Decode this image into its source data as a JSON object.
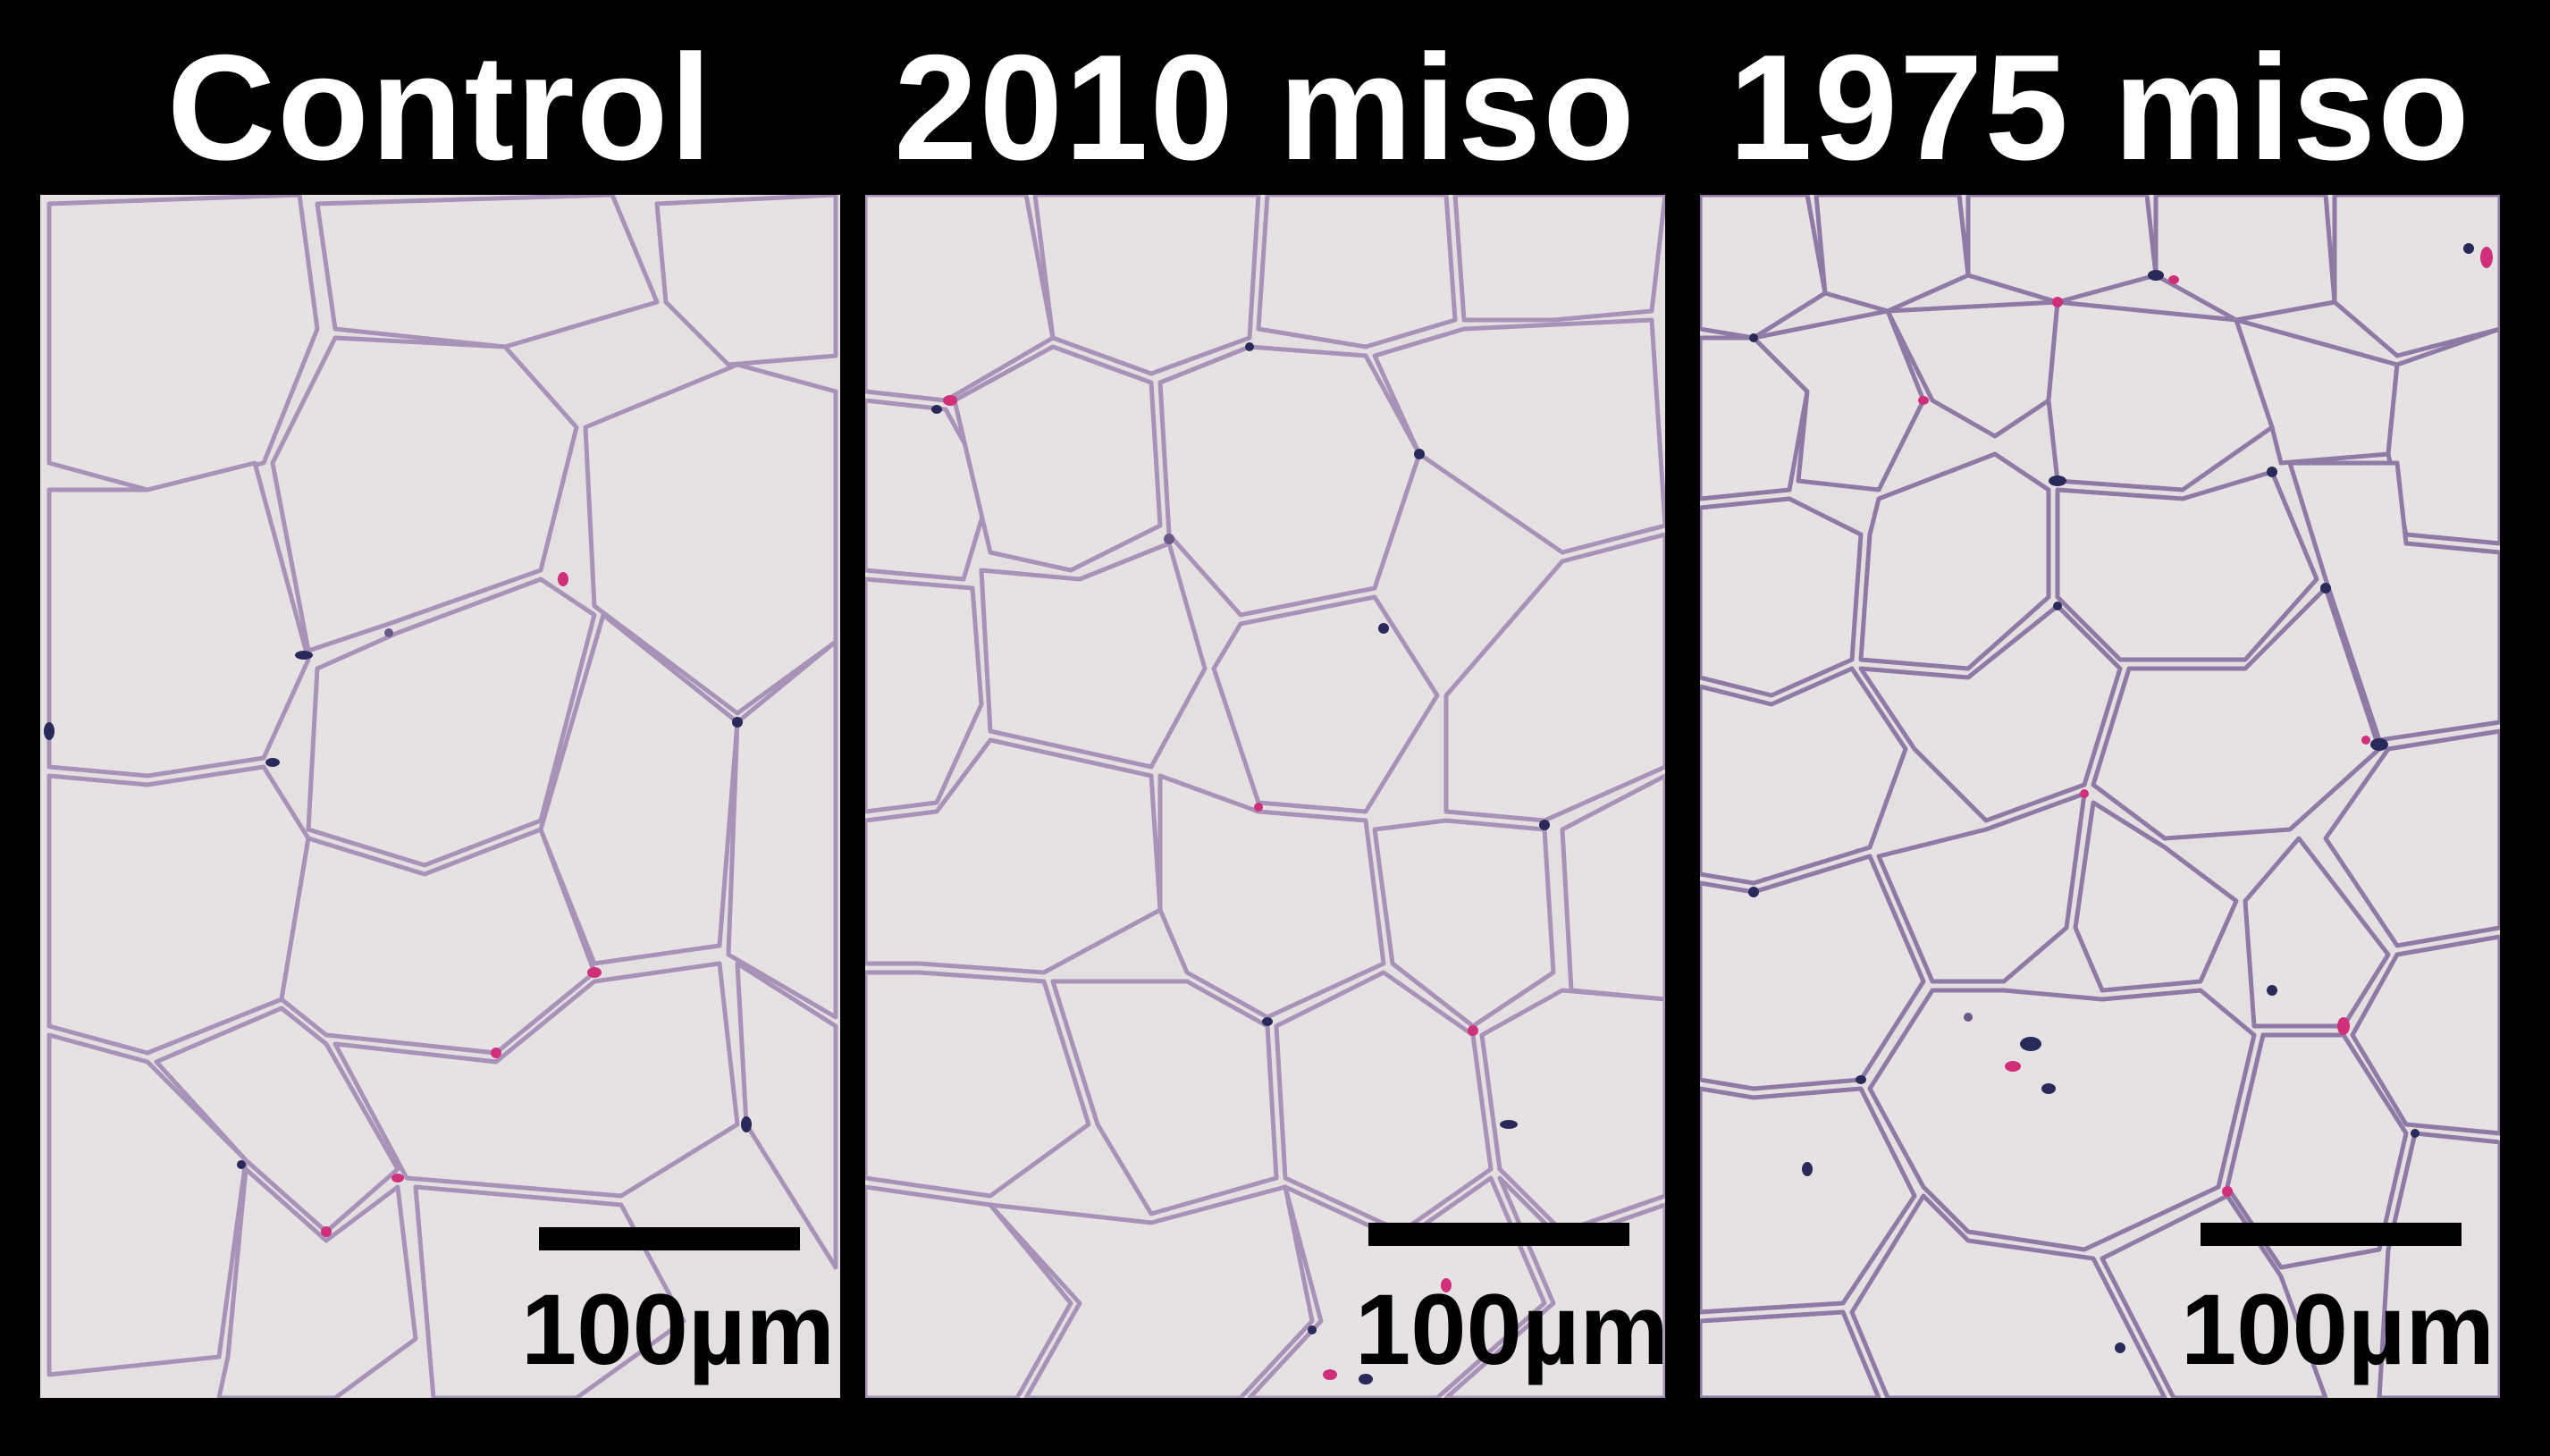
{
  "panels": [
    {
      "title": "Control",
      "scale_label": "100µm"
    },
    {
      "title": "2010 miso",
      "scale_label": "100µm"
    },
    {
      "title": "1975 miso",
      "scale_label": "100µm"
    }
  ],
  "colors": {
    "background": "#000000",
    "title_text": "#ffffff",
    "tissue_background": "#e4e0e2",
    "cell_membrane": "#a892b8",
    "nucleus_dark": "#2a2a5a",
    "nucleus_pink": "#d0307a",
    "scale_bar": "#000000"
  }
}
